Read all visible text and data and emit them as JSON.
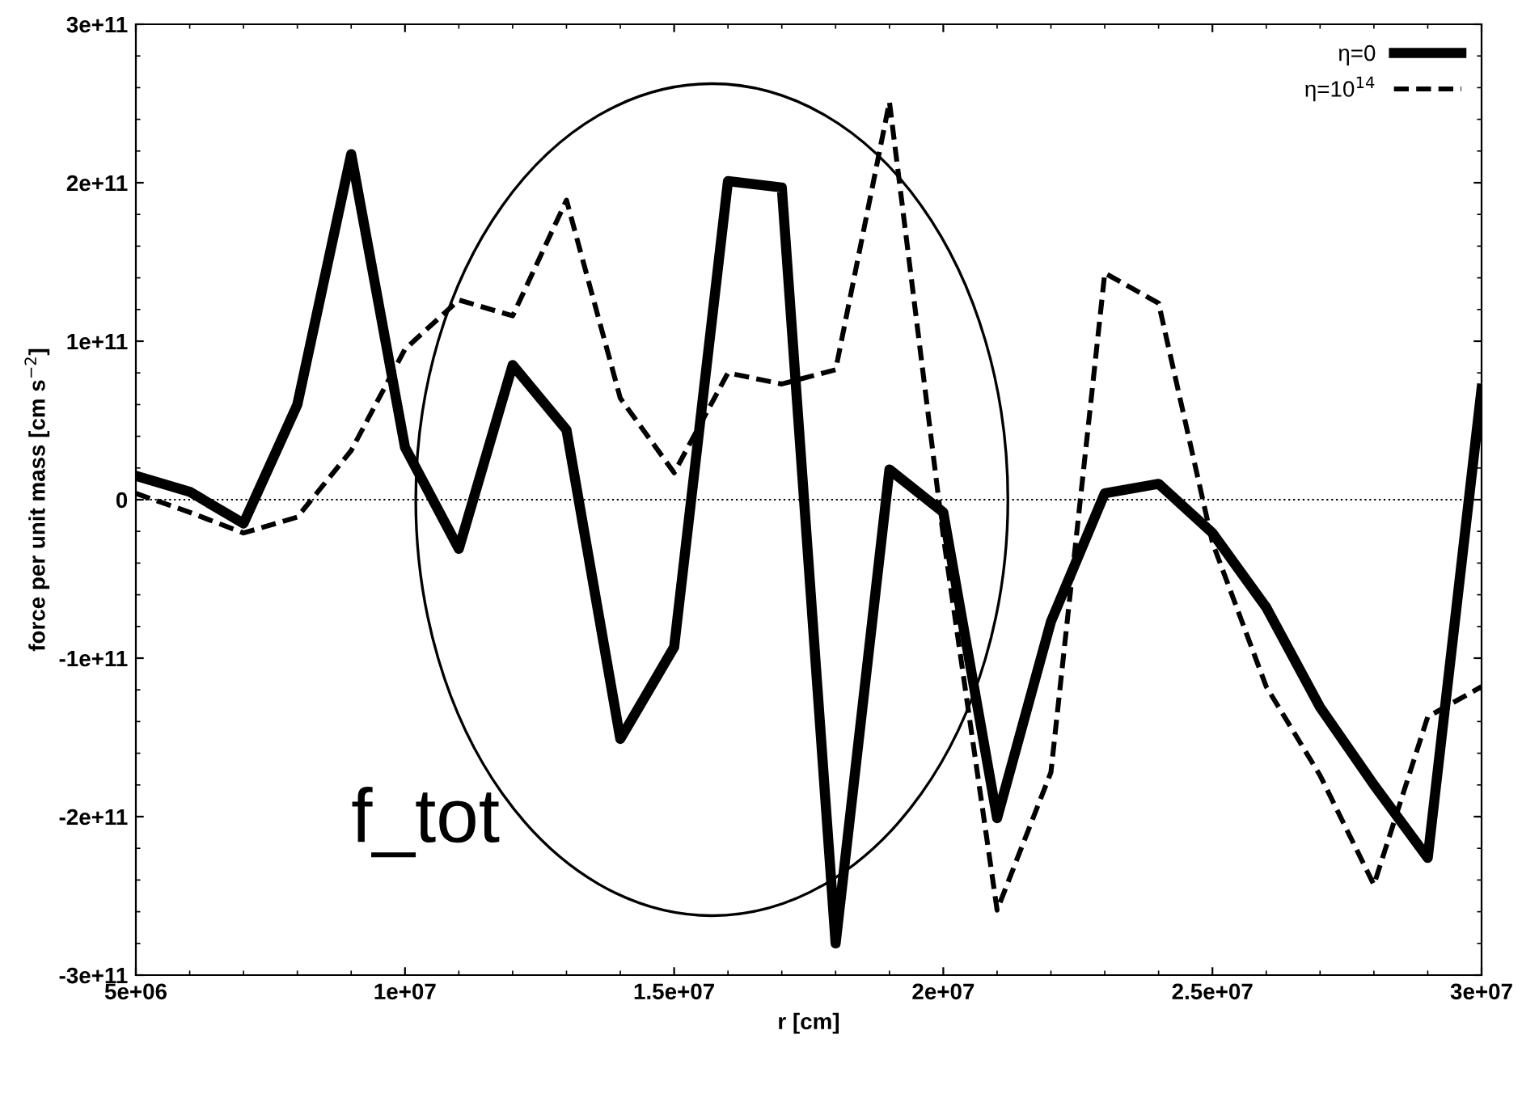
{
  "chart_data": {
    "type": "line",
    "xlabel": "r [cm]",
    "ylabel": "force per unit mass [cm s$^{−2}$]",
    "x": [
      5000000.0,
      6000000.0,
      7000000.0,
      8000000.0,
      9000000.0,
      10000000.0,
      11000000.0,
      12000000.0,
      13000000.0,
      14000000.0,
      15000000.0,
      16000000.0,
      17000000.0,
      18000000.0,
      19000000.0,
      20000000.0,
      21000000.0,
      22000000.0,
      23000000.0,
      24000000.0,
      25000000.0,
      26000000.0,
      27000000.0,
      28000000.0,
      29000000.0,
      30000000.0
    ],
    "series": [
      {
        "name": "η=0",
        "color": "#000000",
        "line_style": "solid",
        "values": [
          15000000000.0,
          5000000000.0,
          -15000000000.0,
          60000000000.0,
          218000000000.0,
          33000000000.0,
          -31000000000.0,
          85000000000.0,
          44000000000.0,
          -151000000000.0,
          -93000000000.0,
          201000000000.0,
          197000000000.0,
          -280000000000.0,
          19000000000.0,
          -8000000000.0,
          -201000000000.0,
          -77000000000.0,
          4000000000.0,
          10000000000.0,
          -21000000000.0,
          -68000000000.0,
          -131000000000.0,
          -180000000000.0,
          -226000000000.0,
          70000000000.0
        ]
      },
      {
        "name": "η=10$^{14}$",
        "color": "#000000",
        "line_style": "dashed",
        "values": [
          4000000000.0,
          -8000000000.0,
          -21000000000.0,
          -11000000000.0,
          31000000000.0,
          95000000000.0,
          126000000000.0,
          116000000000.0,
          189000000000.0,
          64000000000.0,
          17000000000.0,
          80000000000.0,
          73000000000.0,
          82000000000.0,
          251000000000.0,
          -23000000000.0,
          -259000000000.0,
          -172000000000.0,
          143000000000.0,
          124000000000.0,
          -27000000000.0,
          -118000000000.0,
          -174000000000.0,
          -243000000000.0,
          -137000000000.0,
          -118000000000.0
        ]
      }
    ],
    "xlim": [
      5000000.0,
      30000000.0
    ],
    "xticks": [
      {
        "value": 5000000.0,
        "label": "5e+06"
      },
      {
        "value": 10000000.0,
        "label": "1e+07"
      },
      {
        "value": 15000000.0,
        "label": "1.5e+07"
      },
      {
        "value": 20000000.0,
        "label": "2e+07"
      },
      {
        "value": 25000000.0,
        "label": "2.5e+07"
      },
      {
        "value": 30000000.0,
        "label": "3e+07"
      }
    ],
    "ylim": [
      -300000000000.0,
      300000000000.0
    ],
    "yticks": [
      {
        "value": -300000000000.0,
        "label": "-3e+11"
      },
      {
        "value": -200000000000.0,
        "label": "-2e+11"
      },
      {
        "value": -100000000000.0,
        "label": "-1e+11"
      },
      0,
      {
        "value": 100000000000.0,
        "label": "1e+11"
      },
      {
        "value": 200000000000.0,
        "label": "2e+11"
      },
      {
        "value": 300000000000.0,
        "label": "3e+11"
      }
    ],
    "ref_lines": [
      {
        "axis": "y",
        "value": 0,
        "line_style": "dotted",
        "color": "#000000"
      }
    ],
    "annotations": [
      "f_tot"
    ],
    "legend": "top right",
    "grid": false,
    "marker": "none"
  }
}
